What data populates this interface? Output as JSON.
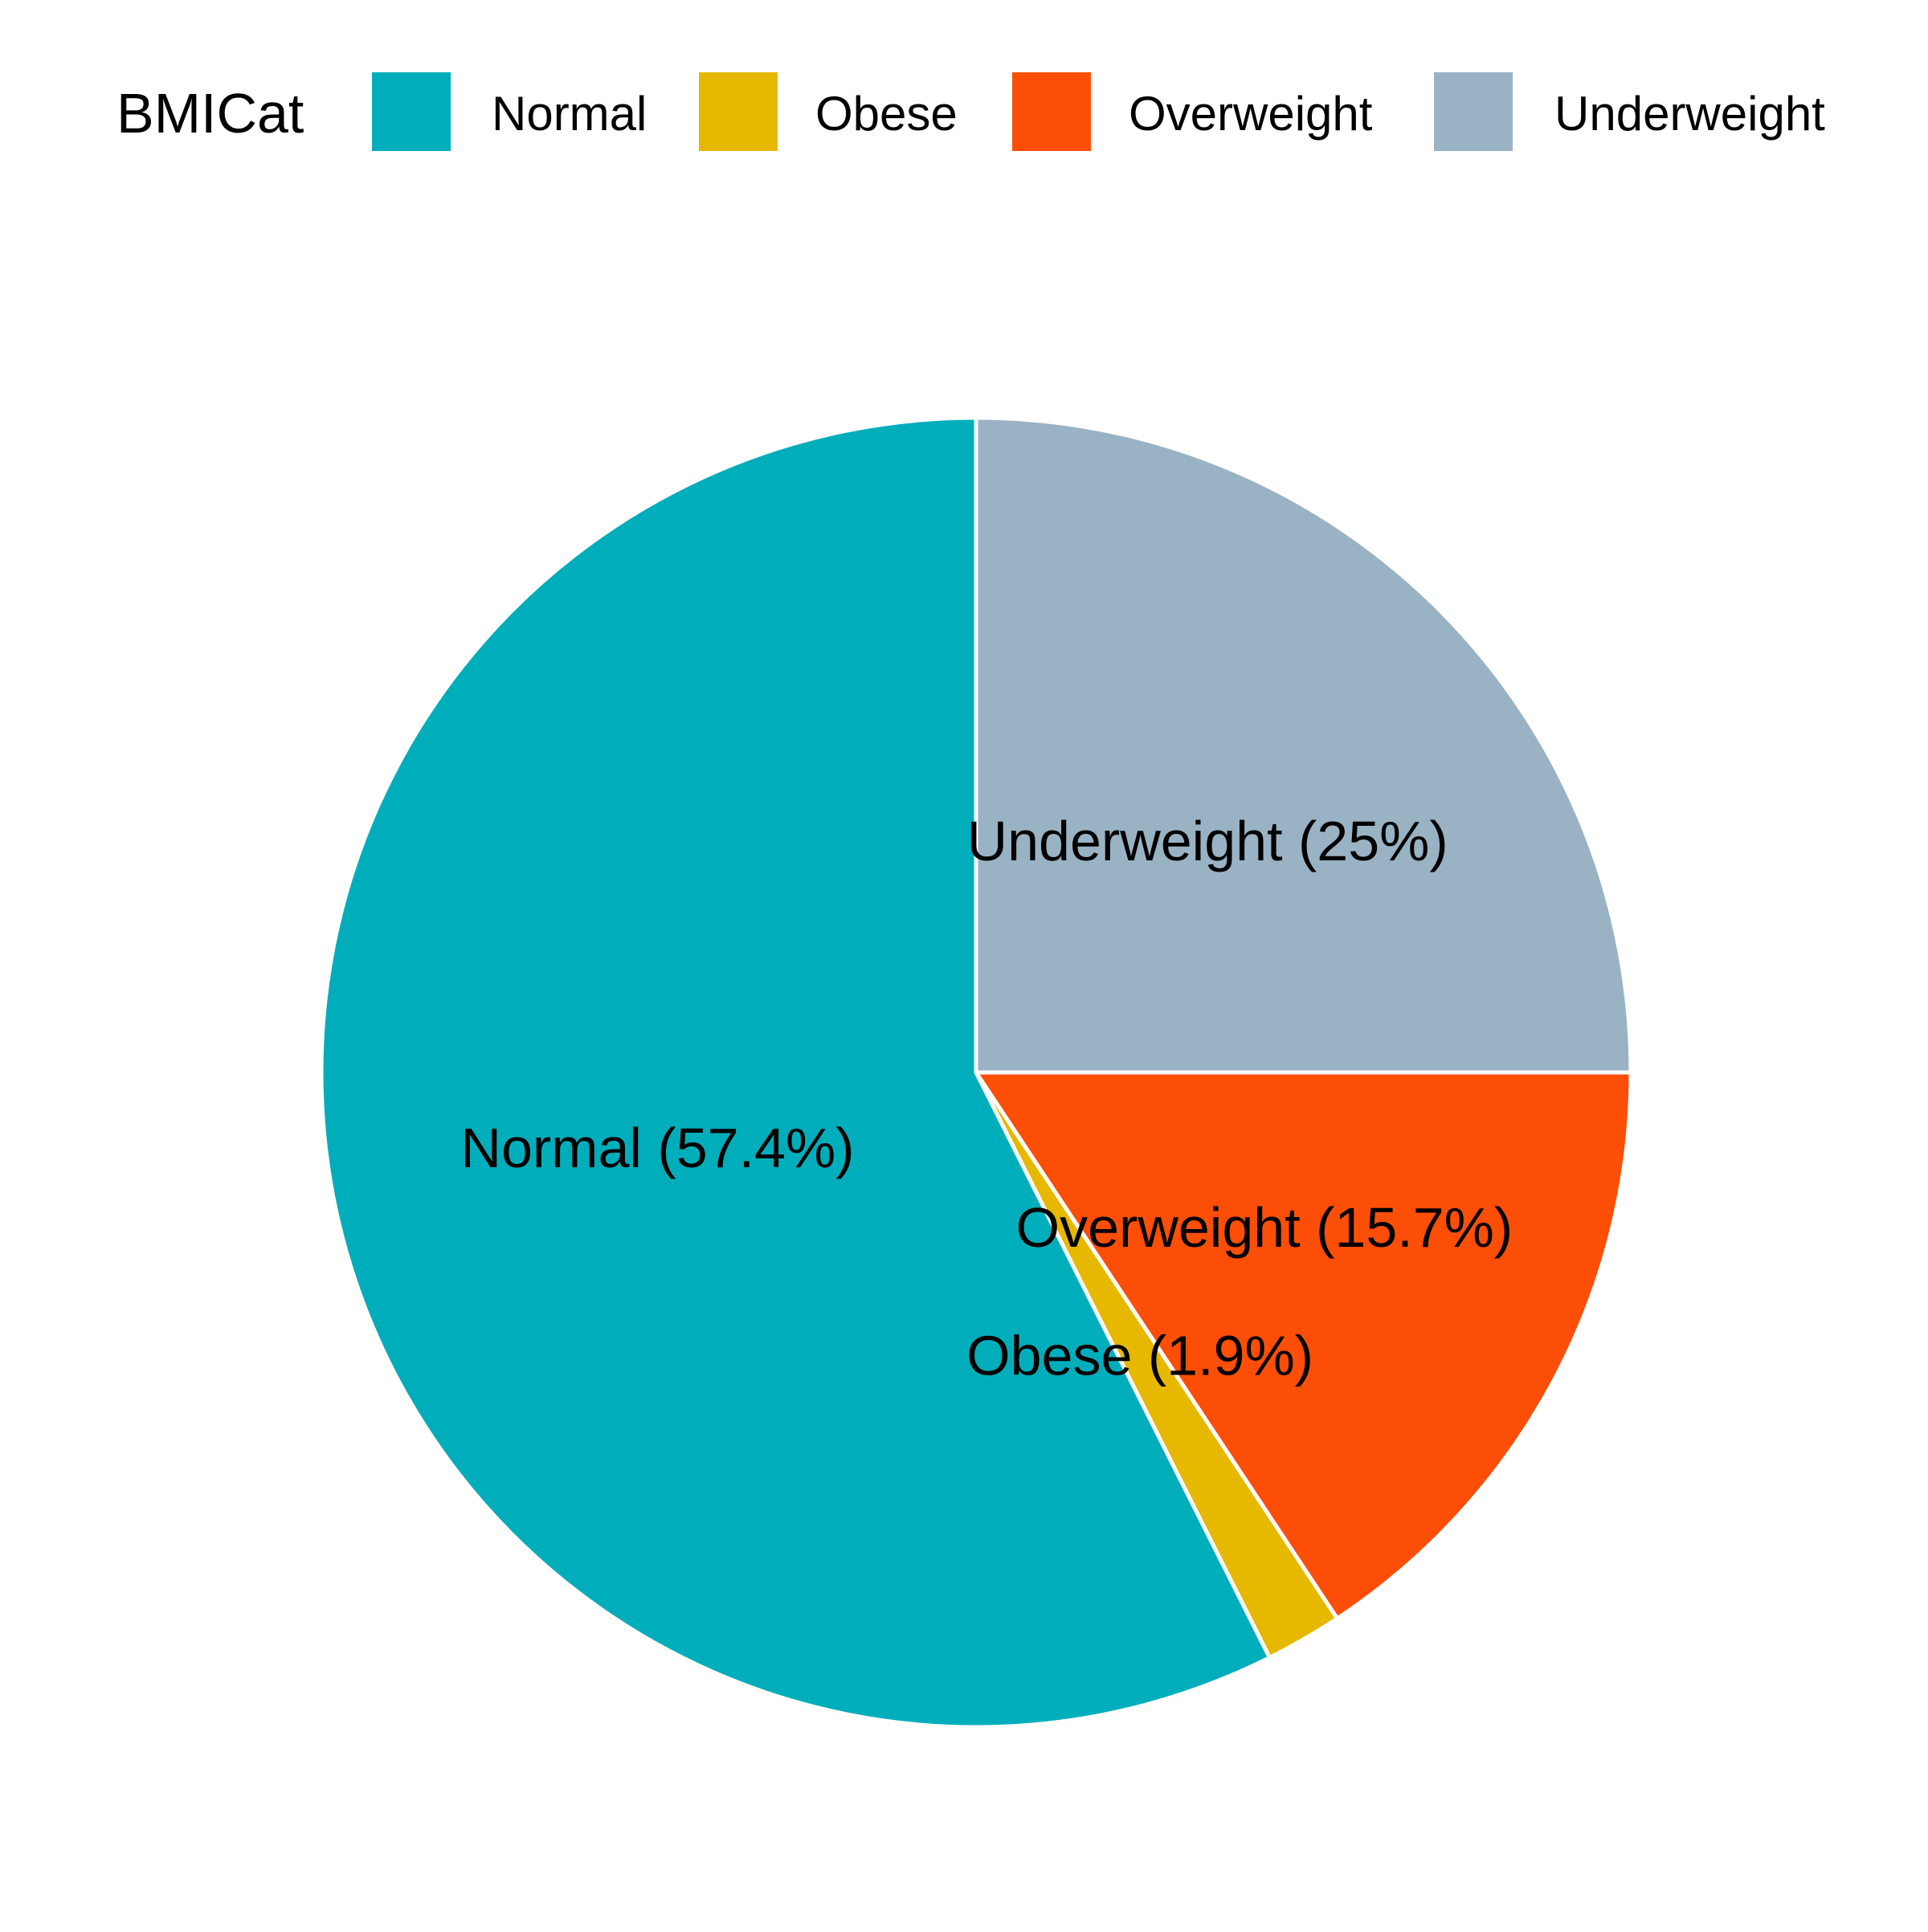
{
  "chart_data": {
    "type": "pie",
    "legend": {
      "title": "BMICat",
      "position": "top"
    },
    "categories": [
      "Normal",
      "Obese",
      "Overweight",
      "Underweight"
    ],
    "values": [
      57.4,
      1.9,
      15.7,
      25
    ],
    "colors": [
      "#00AEBB",
      "#E7B800",
      "#FC4E07",
      "#99B3C4"
    ],
    "slice_labels": [
      "Normal (57.4%)",
      "Obese (1.9%)",
      "Overweight (15.7%)",
      "Underweight (25%)"
    ],
    "slice_border_color": "#FFFFFF"
  }
}
